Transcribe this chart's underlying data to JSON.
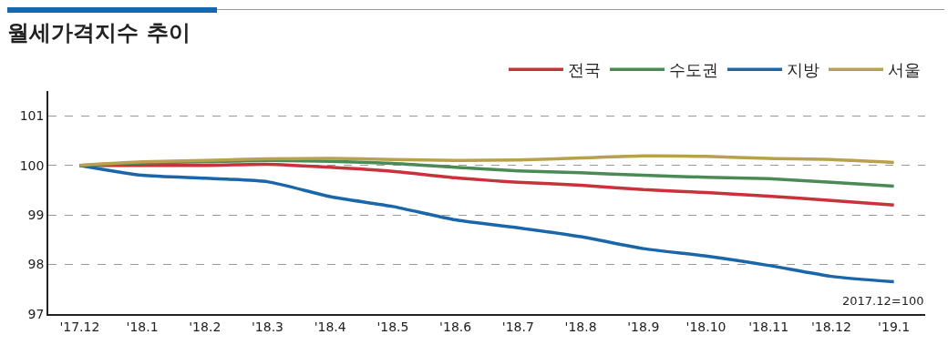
{
  "chart_data": {
    "type": "line",
    "title": "월세가격지수 추이",
    "categories": [
      "'17.12",
      "'18.1",
      "'18.2",
      "'18.3",
      "'18.4",
      "'18.5",
      "'18.6",
      "'18.7",
      "'18.8",
      "'18.9",
      "'18.10",
      "'18.11",
      "'18.12",
      "'19.1"
    ],
    "series": [
      {
        "name": "전국",
        "color": "#c8323a",
        "values": [
          100,
          100,
          100,
          100.02,
          99.96,
          99.88,
          99.75,
          99.66,
          99.6,
          99.51,
          99.45,
          99.38,
          99.29,
          99.2
        ]
      },
      {
        "name": "수도권",
        "color": "#4a8a55",
        "values": [
          100,
          100.05,
          100.07,
          100.1,
          100.08,
          100.04,
          99.96,
          99.89,
          99.85,
          99.8,
          99.76,
          99.73,
          99.66,
          99.58
        ]
      },
      {
        "name": "지방",
        "color": "#1a66aa",
        "values": [
          100,
          99.8,
          99.74,
          99.67,
          99.37,
          99.17,
          98.9,
          98.74,
          98.56,
          98.32,
          98.17,
          97.98,
          97.76,
          97.65
        ]
      },
      {
        "name": "서울",
        "color": "#b8a04e",
        "values": [
          100,
          100.07,
          100.1,
          100.13,
          100.14,
          100.12,
          100.1,
          100.11,
          100.15,
          100.19,
          100.18,
          100.14,
          100.12,
          100.06
        ]
      }
    ],
    "ylim": [
      97,
      101.5
    ],
    "yticks": [
      97,
      98,
      99,
      100,
      101
    ],
    "grid": "y",
    "legend": "top right",
    "marker": "none",
    "line_style": "solid",
    "annotations": [
      "2017.12=100"
    ]
  }
}
